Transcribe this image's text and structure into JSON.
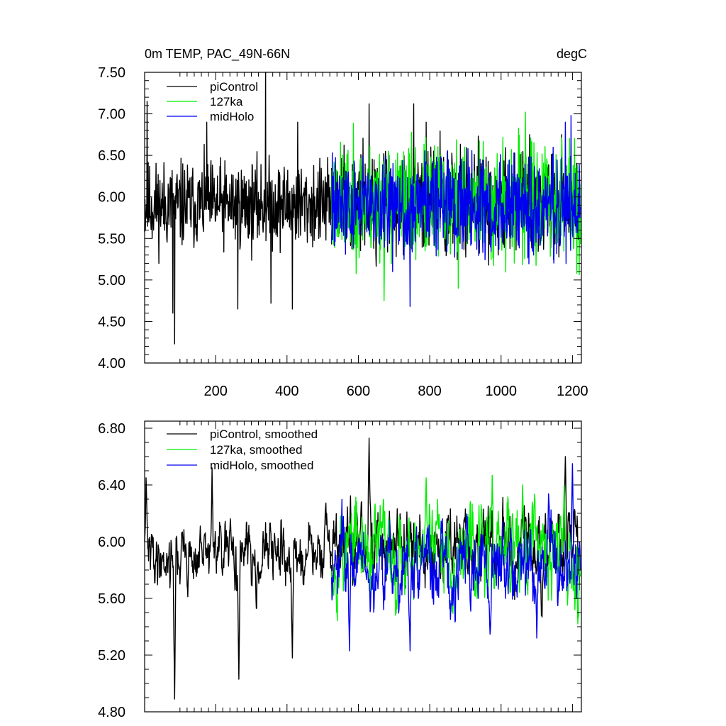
{
  "chart_data": [
    {
      "type": "line",
      "title": "0m TEMP, PAC_49N-66N",
      "units": "degC",
      "xlabel": "",
      "ylabel": "",
      "xlim": [
        1,
        1225
      ],
      "ylim": [
        4.0,
        7.5
      ],
      "y_ticks": [
        "7.50",
        "7.00",
        "6.50",
        "6.00",
        "5.50",
        "5.00",
        "4.50",
        "4.00"
      ],
      "x_ticks": [
        "200",
        "400",
        "600",
        "800",
        "1000",
        "1200"
      ],
      "series": [
        {
          "name": "piControl",
          "color": "#000000",
          "x_range": [
            1,
            525
          ],
          "mean": 5.9,
          "amplitude": 0.32,
          "seed": 11,
          "events": [
            [
              8,
              7.15
            ],
            [
              85,
              4.23
            ],
            [
              80,
              4.6
            ],
            [
              175,
              6.9
            ],
            [
              262,
              4.65
            ],
            [
              340,
              7.5
            ],
            [
              355,
              4.72
            ],
            [
              415,
              4.65
            ],
            [
              430,
              6.9
            ]
          ]
        },
        {
          "name": "piControl",
          "color": "#000000",
          "x_range": [
            525,
            1220
          ],
          "mean": 5.95,
          "amplitude": 0.38,
          "seed": 12,
          "events": [
            [
              630,
              7.12
            ],
            [
              755,
              7.12
            ],
            [
              790,
              6.9
            ],
            [
              1080,
              6.75
            ],
            [
              1170,
              6.75
            ]
          ]
        },
        {
          "name": "127ka",
          "color": "#00ee00",
          "x_range": [
            525,
            1222
          ],
          "mean": 5.95,
          "amplitude": 0.42,
          "seed": 23,
          "events": [
            [
              672,
              4.75
            ],
            [
              1068,
              7.02
            ],
            [
              880,
              4.9
            ],
            [
              1212,
              5.08
            ]
          ]
        },
        {
          "name": "midHolo",
          "color": "#0000ee",
          "x_range": [
            525,
            1222
          ],
          "mean": 5.9,
          "amplitude": 0.36,
          "seed": 34,
          "events": [
            [
              745,
              4.68
            ],
            [
              1196,
              6.98
            ],
            [
              1180,
              6.9
            ]
          ]
        }
      ],
      "legend": [
        "piControl",
        "127ka",
        "midHolo"
      ],
      "legend_colors": [
        "#000000",
        "#00ee00",
        "#0000ee"
      ],
      "legend_position": "top-left"
    },
    {
      "type": "line",
      "title": "",
      "xlabel": "",
      "ylabel": "",
      "xlim": [
        1,
        1225
      ],
      "ylim": [
        4.8,
        6.85
      ],
      "y_ticks": [
        "6.80",
        "6.40",
        "6.00",
        "5.60",
        "5.20",
        "4.80"
      ],
      "series": [
        {
          "name": "piControl, smoothed",
          "color": "#000000",
          "x_range": [
            1,
            525
          ],
          "mean": 5.9,
          "amplitude": 0.16,
          "seed": 41,
          "events": [
            [
              5,
              6.45
            ],
            [
              85,
              4.89
            ],
            [
              190,
              6.52
            ],
            [
              265,
              5.03
            ],
            [
              415,
              5.18
            ]
          ]
        },
        {
          "name": "piControl, smoothed",
          "color": "#000000",
          "x_range": [
            525,
            1220
          ],
          "mean": 5.95,
          "amplitude": 0.2,
          "seed": 42,
          "events": [
            [
              630,
              6.73
            ],
            [
              1180,
              6.6
            ]
          ]
        },
        {
          "name": "127ka, smoothed",
          "color": "#00ee00",
          "x_range": [
            525,
            1222
          ],
          "mean": 5.95,
          "amplitude": 0.24,
          "seed": 53,
          "events": [
            [
              1215,
              5.42
            ],
            [
              790,
              6.45
            ],
            [
              1060,
              6.4
            ]
          ]
        },
        {
          "name": "midHolo, smoothed",
          "color": "#0000ee",
          "x_range": [
            525,
            1222
          ],
          "mean": 5.85,
          "amplitude": 0.2,
          "seed": 64,
          "events": [
            [
              575,
              5.23
            ],
            [
              745,
              5.23
            ],
            [
              1200,
              6.55
            ],
            [
              1100,
              5.32
            ]
          ]
        }
      ],
      "legend": [
        "piControl, smoothed",
        "127ka, smoothed",
        "midHolo, smoothed"
      ],
      "legend_colors": [
        "#000000",
        "#00ee00",
        "#0000ee"
      ],
      "legend_position": "top-left"
    }
  ]
}
